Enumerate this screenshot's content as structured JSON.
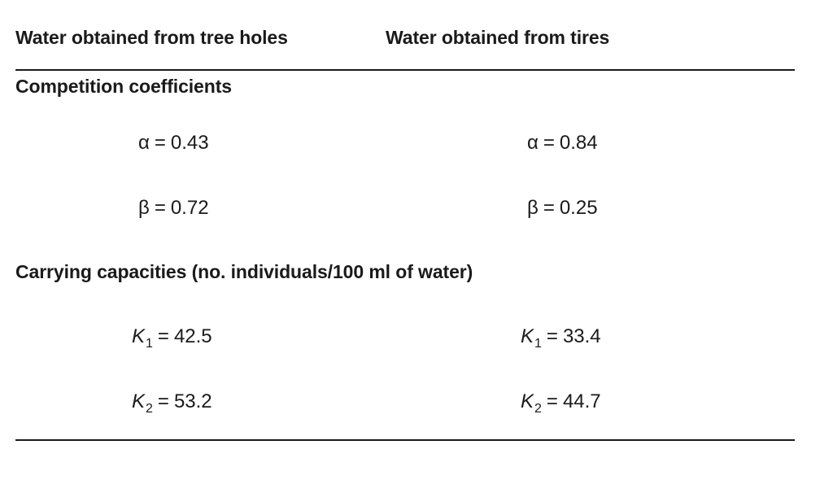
{
  "header": {
    "col1": "Water obtained from tree holes",
    "col2": "Water obtained from tires"
  },
  "sections": {
    "competition": {
      "title": "Competition coefficients",
      "alpha": {
        "symbol": "α",
        "eq": "=",
        "col1": "0.43",
        "col2": "0.84"
      },
      "beta": {
        "symbol": "β",
        "eq": "=",
        "col1": "0.72",
        "col2": "0.25"
      }
    },
    "carrying": {
      "title": "Carrying capacities (no. individuals/100 ml of water)",
      "k1": {
        "symbol": "K",
        "sub": "1",
        "eq": "=",
        "col1": "42.5",
        "col2": "33.4"
      },
      "k2": {
        "symbol": "K",
        "sub": "2",
        "eq": "=",
        "col1": "53.2",
        "col2": "44.7"
      }
    }
  }
}
